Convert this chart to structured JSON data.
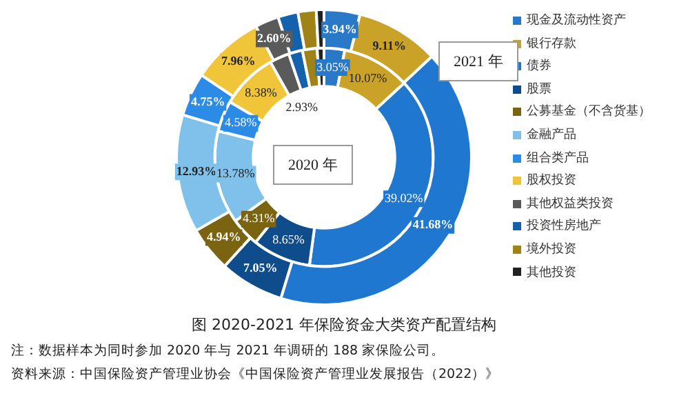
{
  "chart_data": {
    "type": "donut",
    "title": "图 2020-2021 年保险资金大类资产配置结构",
    "categories": [
      "现金及流动性资产",
      "银行存款",
      "债券",
      "股票",
      "公募基金（不含货基）",
      "金融产品",
      "组合类产品",
      "股权投资",
      "其他权益类投资",
      "投资性房地产",
      "境外投资",
      "其他投资"
    ],
    "series": [
      {
        "name": "2021 年",
        "colors": [
          "#2a78c8",
          "#c9a227",
          "#1f77d0",
          "#0f4c8c",
          "#7a6412",
          "#7fc1ea",
          "#2b8be6",
          "#f0c53a",
          "#5a5a5a",
          "#1462ae",
          "#a08318",
          "#222222"
        ],
        "values": [
          3.94,
          9.11,
          41.68,
          7.05,
          4.94,
          12.93,
          4.75,
          7.96,
          2.6,
          2.2,
          2.0,
          0.84
        ],
        "value_labels": [
          "3.94%",
          "9.11%",
          "41.68%",
          "7.05%",
          "4.94%",
          "12.93%",
          "4.75%",
          "7.96%",
          "2.60%",
          null,
          null,
          null
        ]
      },
      {
        "name": "2020 年",
        "colors": [
          "#2a78c8",
          "#c9a227",
          "#1f77d0",
          "#0f4c8c",
          "#7a6412",
          "#7fc1ea",
          "#2b8be6",
          "#f0c53a",
          "#5a5a5a",
          "#1462ae",
          "#a08318",
          "#222222"
        ],
        "values": [
          3.05,
          10.07,
          39.02,
          8.65,
          4.31,
          13.78,
          4.58,
          8.38,
          2.93,
          2.05,
          2.18,
          1.0
        ],
        "value_labels": [
          "3.05%",
          "10.07%",
          "39.02%",
          "8.65%",
          "4.31%",
          "13.78%",
          "4.58%",
          "8.38%",
          "2.93%",
          null,
          null,
          null
        ]
      }
    ],
    "legend": "right",
    "annotations": [
      "注：数据样本为同时参加 2020 年与 2021 年调研的 188 家保险公司。",
      "资料来源：中国保险资产管理业协会《中国保险资产管理业发展报告（2022）》"
    ]
  }
}
